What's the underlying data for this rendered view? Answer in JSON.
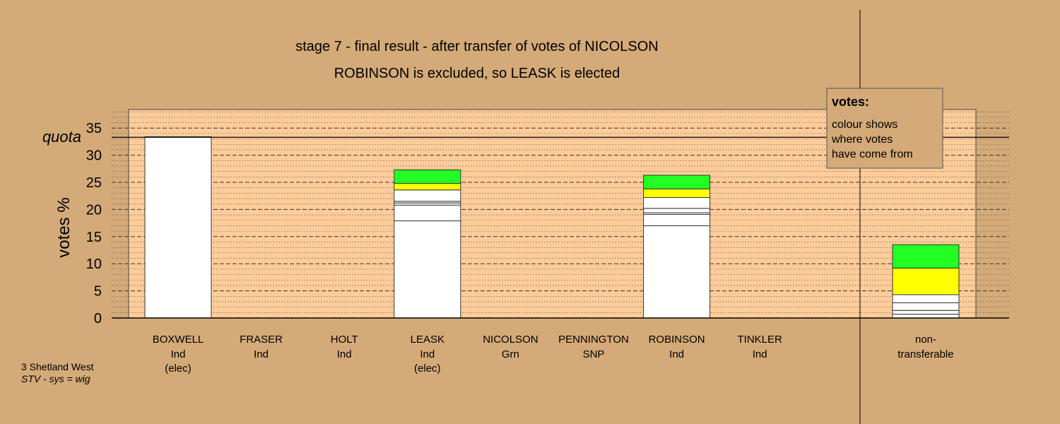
{
  "chart_data": {
    "type": "bar",
    "title": "stage 7 - final result - after transfer of votes of NICOLSON",
    "subtitle": "ROBINSON is excluded, so LEASK is elected",
    "ylabel": "votes %",
    "quota_label": "quota",
    "quota": 33.3,
    "ylim": [
      0,
      38
    ],
    "yticks": [
      0,
      5,
      10,
      15,
      20,
      25,
      30,
      35
    ],
    "grid": true,
    "legend_position": "top-right",
    "legend": {
      "title": "votes:",
      "lines": [
        "colour shows",
        "where votes",
        "have come from"
      ]
    },
    "footer": {
      "line1": "3 Shetland West",
      "line2": "STV - sys = wig"
    },
    "colors": {
      "background": "#D4AA78",
      "plot_area": "#FFCC99",
      "own_votes": "#FFFFFF",
      "transfer_yellow": "#FFFF00",
      "transfer_green": "#22FF22"
    },
    "candidates": [
      {
        "name": "BOXWELL",
        "party": "Ind",
        "status": "(elec)",
        "segments": [
          {
            "value": 33.4,
            "color": "#FFFFFF"
          }
        ]
      },
      {
        "name": "FRASER",
        "party": "Ind",
        "status": "",
        "segments": []
      },
      {
        "name": "HOLT",
        "party": "Ind",
        "status": "",
        "segments": []
      },
      {
        "name": "LEASK",
        "party": "Ind",
        "status": "(elec)",
        "segments": [
          {
            "value": 17.9,
            "color": "#FFFFFF"
          },
          {
            "value": 2.9,
            "color": "#FFFFFF"
          },
          {
            "value": 0.4,
            "color": "#FFFFFF"
          },
          {
            "value": 0.3,
            "color": "#FFFFFF"
          },
          {
            "value": 2.1,
            "color": "#FFFFFF"
          },
          {
            "value": 1.2,
            "color": "#FFFF00"
          },
          {
            "value": 2.5,
            "color": "#22FF22"
          }
        ]
      },
      {
        "name": "NICOLSON",
        "party": "Grn",
        "status": "",
        "segments": []
      },
      {
        "name": "PENNINGTON",
        "party": "SNP",
        "status": "",
        "segments": []
      },
      {
        "name": "ROBINSON",
        "party": "Ind",
        "status": "",
        "segments": [
          {
            "value": 17.0,
            "color": "#FFFFFF"
          },
          {
            "value": 2.1,
            "color": "#FFFFFF"
          },
          {
            "value": 0.3,
            "color": "#FFFFFF"
          },
          {
            "value": 0.8,
            "color": "#FFFFFF"
          },
          {
            "value": 2.0,
            "color": "#FFFFFF"
          },
          {
            "value": 1.6,
            "color": "#FFFF00"
          },
          {
            "value": 2.5,
            "color": "#22FF22"
          }
        ]
      },
      {
        "name": "TINKLER",
        "party": "Ind",
        "status": "",
        "segments": []
      }
    ],
    "nontransferable": {
      "label_line1": "non-",
      "label_line2": "transferable",
      "segments": [
        {
          "value": 0.7,
          "color": "#FFFFFF"
        },
        {
          "value": 0.7,
          "color": "#FFFFFF"
        },
        {
          "value": 1.4,
          "color": "#FFFFFF"
        },
        {
          "value": 1.5,
          "color": "#FFFFFF"
        },
        {
          "value": 4.9,
          "color": "#FFFF00"
        },
        {
          "value": 4.3,
          "color": "#22FF22"
        }
      ]
    }
  }
}
